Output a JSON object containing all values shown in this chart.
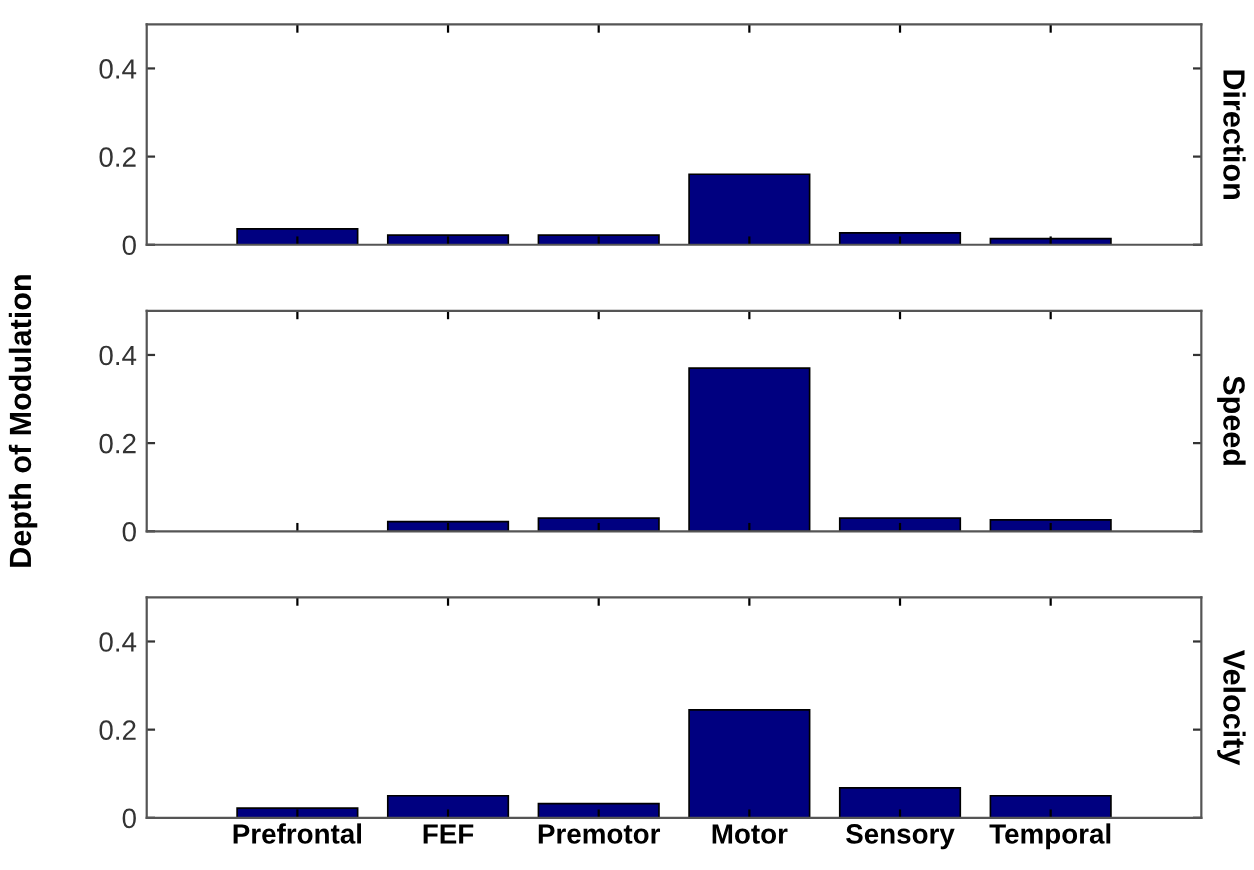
{
  "chart_data": [
    {
      "type": "bar",
      "categories": [
        null,
        null,
        null,
        null,
        null,
        null
      ],
      "y2label": "Direction",
      "tick_labels": "y",
      "ylim": [
        0,
        0.5
      ],
      "yticks": [
        0,
        0.2,
        0.4
      ],
      "grid": false,
      "legend": false,
      "series": [
        {
          "color": "#000080",
          "values": [
            0.036,
            0.022,
            0.022,
            0.16,
            0.027,
            0.014
          ]
        }
      ]
    },
    {
      "type": "bar",
      "categories": [
        null,
        null,
        null,
        null,
        null,
        null
      ],
      "ylabel": "Depth of Modulation",
      "y2label": "Speed",
      "tick_labels": "y",
      "ylim": [
        0,
        0.5
      ],
      "yticks": [
        0,
        0.2,
        0.4
      ],
      "grid": false,
      "legend": false,
      "series": [
        {
          "color": "#000080",
          "values": [
            null,
            0.022,
            0.03,
            0.37,
            0.03,
            0.026
          ]
        }
      ]
    },
    {
      "type": "bar",
      "categories": [
        "Prefrontal",
        "FEF",
        "Premotor",
        "Motor",
        "Sensory",
        "Temporal"
      ],
      "y2label": "Velocity",
      "ylim": [
        0,
        0.5
      ],
      "yticks": [
        0,
        0.2,
        0.4
      ],
      "grid": false,
      "legend": false,
      "series": [
        {
          "color": "#000080",
          "values": [
            0.022,
            0.05,
            0.032,
            0.245,
            0.068,
            0.05
          ]
        }
      ]
    }
  ]
}
